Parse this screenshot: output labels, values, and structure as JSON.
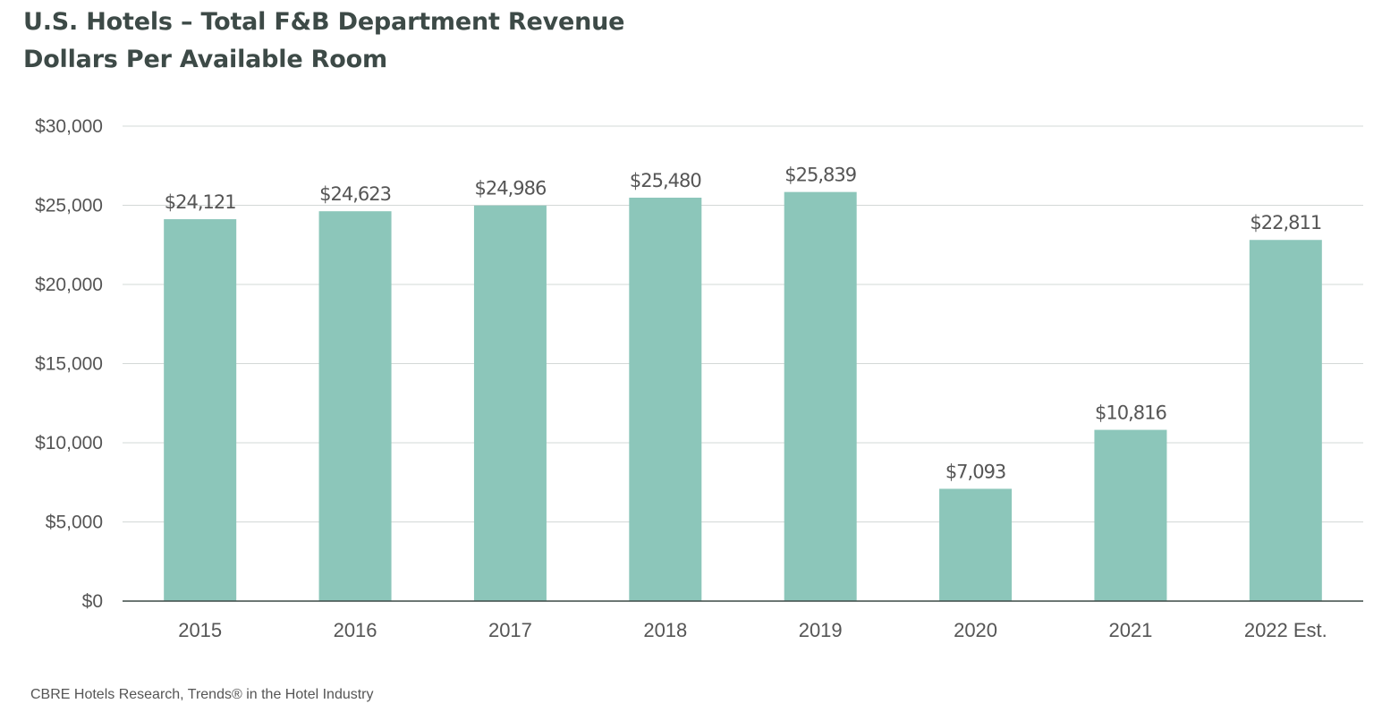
{
  "title_line1": "U.S. Hotels – Total F&B Department Revenue",
  "title_line2": "Dollars Per Available Room",
  "source": "CBRE Hotels Research, Trends® in the Hotel Industry",
  "colors": {
    "bar": "#8cc6ba",
    "grid": "#d3d8d7",
    "axis": "#3d4a47",
    "label": "#555555"
  },
  "chart_data": {
    "type": "bar",
    "title": "U.S. Hotels – Total F&B Department Revenue",
    "subtitle": "Dollars Per Available Room",
    "xlabel": "",
    "ylabel": "",
    "ylim": [
      0,
      30000
    ],
    "yticks": [
      0,
      5000,
      10000,
      15000,
      20000,
      25000,
      30000
    ],
    "ytick_labels": [
      "$0",
      "$5,000",
      "$10,000",
      "$15,000",
      "$20,000",
      "$25,000",
      "$30,000"
    ],
    "grid": true,
    "legend": "none",
    "categories": [
      "2015",
      "2016",
      "2017",
      "2018",
      "2019",
      "2020",
      "2021",
      "2022 Est."
    ],
    "values": [
      24121,
      24623,
      24986,
      25480,
      25839,
      7093,
      10816,
      22811
    ],
    "data_labels": [
      "$24,121",
      "$24,623",
      "$24,986",
      "$25,480",
      "$25,839",
      "$7,093",
      "$10,816",
      "$22,811"
    ]
  }
}
